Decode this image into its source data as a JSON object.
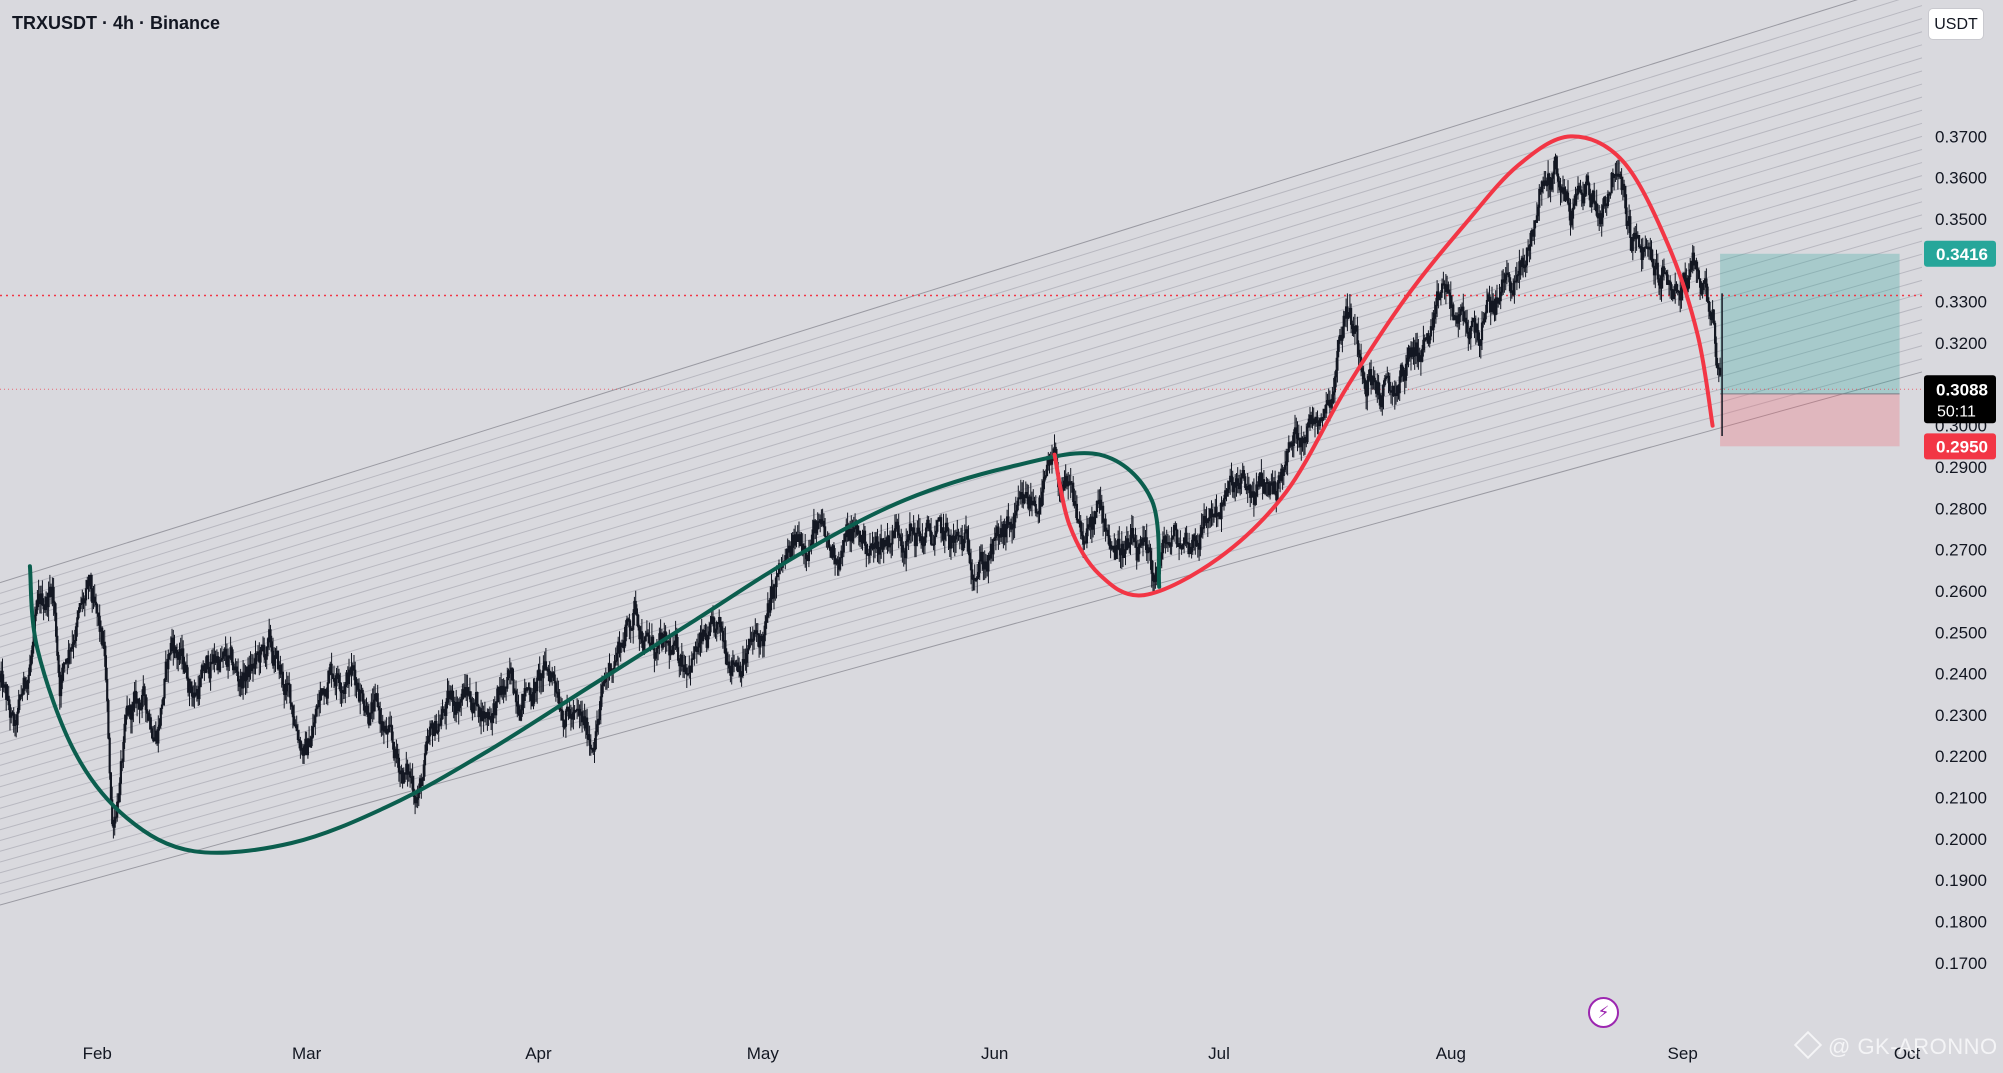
{
  "header": {
    "symbol_title": "TRXUSDT · 4h · Binance"
  },
  "toolbar": {
    "currency_label": "USDT"
  },
  "watermark": {
    "text": "@ GK-ARONNO",
    "icon": "diamond-logo-icon"
  },
  "bolt_icon": "lightning-bolt-icon",
  "colors": {
    "background": "#d9d9de",
    "candles": "#131722",
    "green_curve": "#0b5e4e",
    "red_curve": "#f23645",
    "profit_zone": "#26a69a",
    "stop_zone": "#f7525f",
    "target_badge": "#26a69a",
    "stop_badge": "#f23645",
    "last_badge": "#000000",
    "dotted_line": "#f23645"
  },
  "chart_data": {
    "type": "candlestick",
    "symbol": "TRXUSDT",
    "interval": "4h",
    "exchange": "Binance",
    "currency": "USDT",
    "x_ticks": [
      "Feb",
      "Mar",
      "Apr",
      "May",
      "Jun",
      "Jul",
      "Aug",
      "Sep",
      "Oct"
    ],
    "x_tick_dates": [
      "2025-02-01",
      "2025-03-01",
      "2025-04-01",
      "2025-05-01",
      "2025-06-01",
      "2025-07-01",
      "2025-08-01",
      "2025-09-01",
      "2025-10-01"
    ],
    "y_ticks": [
      "0.3700",
      "0.3600",
      "0.3500",
      "0.3300",
      "0.3200",
      "0.3000",
      "0.2900",
      "0.2800",
      "0.2700",
      "0.2600",
      "0.2500",
      "0.2400",
      "0.2300",
      "0.2200",
      "0.2100",
      "0.2000",
      "0.1900",
      "0.1800",
      "0.1700"
    ],
    "ylim": [
      0.1644,
      0.3851
    ],
    "x_range": [
      "2025-01-19",
      "2025-10-03"
    ],
    "grid": false,
    "price_path": [
      [
        "2025-01-19",
        0.238
      ],
      [
        "2025-01-21",
        0.224
      ],
      [
        "2025-01-24",
        0.252
      ],
      [
        "2025-01-26",
        0.262
      ],
      [
        "2025-01-27",
        0.239
      ],
      [
        "2025-01-29",
        0.253
      ],
      [
        "2025-01-31",
        0.258
      ],
      [
        "2025-02-02",
        0.242
      ],
      [
        "2025-02-03",
        0.203
      ],
      [
        "2025-02-05",
        0.227
      ],
      [
        "2025-02-07",
        0.233
      ],
      [
        "2025-02-09",
        0.228
      ],
      [
        "2025-02-11",
        0.248
      ],
      [
        "2025-02-14",
        0.236
      ],
      [
        "2025-02-17",
        0.244
      ],
      [
        "2025-02-20",
        0.238
      ],
      [
        "2025-02-24",
        0.245
      ],
      [
        "2025-02-27",
        0.232
      ],
      [
        "2025-03-01",
        0.221
      ],
      [
        "2025-03-04",
        0.242
      ],
      [
        "2025-03-07",
        0.241
      ],
      [
        "2025-03-10",
        0.232
      ],
      [
        "2025-03-13",
        0.218
      ],
      [
        "2025-03-16",
        0.212
      ],
      [
        "2025-03-19",
        0.23
      ],
      [
        "2025-03-22",
        0.236
      ],
      [
        "2025-03-25",
        0.231
      ],
      [
        "2025-03-28",
        0.236
      ],
      [
        "2025-03-31",
        0.237
      ],
      [
        "2025-04-03",
        0.24
      ],
      [
        "2025-04-06",
        0.228
      ],
      [
        "2025-04-08",
        0.224
      ],
      [
        "2025-04-11",
        0.244
      ],
      [
        "2025-04-14",
        0.256
      ],
      [
        "2025-04-16",
        0.246
      ],
      [
        "2025-04-19",
        0.243
      ],
      [
        "2025-04-22",
        0.246
      ],
      [
        "2025-04-25",
        0.247
      ],
      [
        "2025-04-28",
        0.245
      ],
      [
        "2025-05-01",
        0.248
      ],
      [
        "2025-05-03",
        0.262
      ],
      [
        "2025-05-06",
        0.272
      ],
      [
        "2025-05-08",
        0.276
      ],
      [
        "2025-05-10",
        0.268
      ],
      [
        "2025-05-13",
        0.274
      ],
      [
        "2025-05-16",
        0.27
      ],
      [
        "2025-05-19",
        0.276
      ],
      [
        "2025-05-22",
        0.273
      ],
      [
        "2025-05-25",
        0.272
      ],
      [
        "2025-05-28",
        0.27
      ],
      [
        "2025-05-31",
        0.268
      ],
      [
        "2025-06-03",
        0.274
      ],
      [
        "2025-06-07",
        0.283
      ],
      [
        "2025-06-09",
        0.289
      ],
      [
        "2025-06-11",
        0.281
      ],
      [
        "2025-06-13",
        0.272
      ],
      [
        "2025-06-15",
        0.278
      ],
      [
        "2025-06-17",
        0.272
      ],
      [
        "2025-06-19",
        0.27
      ],
      [
        "2025-06-21",
        0.266
      ],
      [
        "2025-06-22",
        0.262
      ],
      [
        "2025-06-24",
        0.271
      ],
      [
        "2025-06-27",
        0.272
      ],
      [
        "2025-06-30",
        0.279
      ],
      [
        "2025-07-03",
        0.284
      ],
      [
        "2025-07-06",
        0.283
      ],
      [
        "2025-07-09",
        0.287
      ],
      [
        "2025-07-12",
        0.3
      ],
      [
        "2025-07-14",
        0.303
      ],
      [
        "2025-07-16",
        0.31
      ],
      [
        "2025-07-18",
        0.33
      ],
      [
        "2025-07-20",
        0.318
      ],
      [
        "2025-07-22",
        0.31
      ],
      [
        "2025-07-24",
        0.306
      ],
      [
        "2025-07-27",
        0.318
      ],
      [
        "2025-07-30",
        0.322
      ],
      [
        "2025-07-31",
        0.333
      ],
      [
        "2025-08-02",
        0.324
      ],
      [
        "2025-08-05",
        0.323
      ],
      [
        "2025-08-08",
        0.334
      ],
      [
        "2025-08-11",
        0.338
      ],
      [
        "2025-08-13",
        0.357
      ],
      [
        "2025-08-15",
        0.362
      ],
      [
        "2025-08-17",
        0.352
      ],
      [
        "2025-08-19",
        0.358
      ],
      [
        "2025-08-21",
        0.352
      ],
      [
        "2025-08-23",
        0.364
      ],
      [
        "2025-08-25",
        0.346
      ],
      [
        "2025-08-27",
        0.34
      ],
      [
        "2025-08-30",
        0.334
      ],
      [
        "2025-09-01",
        0.333
      ],
      [
        "2025-09-03",
        0.335
      ],
      [
        "2025-09-04",
        0.333
      ],
      [
        "2025-09-05",
        0.329
      ],
      [
        "2025-09-06",
        0.3088
      ]
    ],
    "dotted_line_price": 0.3315,
    "last_price_line": 0.3088,
    "position": {
      "entry": 0.3077,
      "target": 0.3416,
      "stop": 0.295,
      "start_date": "2025-09-06",
      "end_date": "2025-09-30"
    },
    "price_badges": [
      {
        "label": "0.3416",
        "price": 0.3416,
        "kind": "target"
      },
      {
        "label": "0.3088",
        "price": 0.3088,
        "kind": "last",
        "countdown": "50:11"
      },
      {
        "label": "0.2950",
        "price": 0.295,
        "kind": "stop"
      }
    ],
    "channel": {
      "upper": [
        [
          "2025-01-19",
          0.262
        ],
        [
          "2025-10-03",
          0.408
        ]
      ],
      "lower": [
        [
          "2025-01-19",
          0.184
        ],
        [
          "2025-10-03",
          0.313
        ]
      ],
      "line_count": 30
    },
    "curves": [
      {
        "color_key": "green_curve",
        "points": [
          [
            "2025-01-23",
            0.266
          ],
          [
            "2025-01-24",
            0.246
          ],
          [
            "2025-01-29",
            0.221
          ],
          [
            "2025-02-05",
            0.205
          ],
          [
            "2025-02-14",
            0.197
          ],
          [
            "2025-02-27",
            0.199
          ],
          [
            "2025-03-12",
            0.208
          ],
          [
            "2025-03-25",
            0.221
          ],
          [
            "2025-04-08",
            0.237
          ],
          [
            "2025-04-22",
            0.253
          ],
          [
            "2025-05-06",
            0.269
          ],
          [
            "2025-05-20",
            0.282
          ],
          [
            "2025-06-03",
            0.29
          ],
          [
            "2025-06-15",
            0.293
          ],
          [
            "2025-06-22",
            0.282
          ],
          [
            "2025-06-23",
            0.261
          ]
        ]
      },
      {
        "color_key": "red_curve",
        "points": [
          [
            "2025-06-09",
            0.293
          ],
          [
            "2025-06-11",
            0.276
          ],
          [
            "2025-06-15",
            0.264
          ],
          [
            "2025-06-21",
            0.259
          ],
          [
            "2025-07-01",
            0.268
          ],
          [
            "2025-07-10",
            0.284
          ],
          [
            "2025-07-18",
            0.309
          ],
          [
            "2025-07-26",
            0.331
          ],
          [
            "2025-08-03",
            0.349
          ],
          [
            "2025-08-10",
            0.363
          ],
          [
            "2025-08-17",
            0.37
          ],
          [
            "2025-08-24",
            0.364
          ],
          [
            "2025-08-30",
            0.344
          ],
          [
            "2025-09-03",
            0.322
          ],
          [
            "2025-09-05",
            0.3
          ]
        ]
      }
    ]
  }
}
